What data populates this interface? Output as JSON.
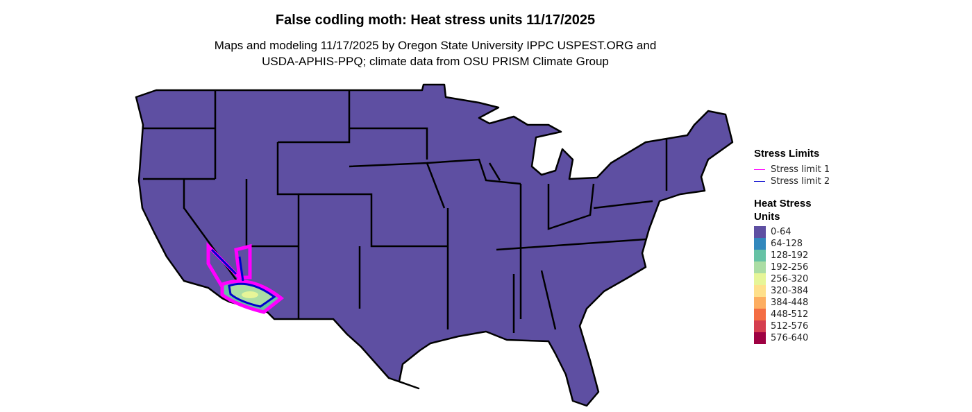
{
  "title": "False codling moth: Heat stress units 11/17/2025",
  "subtitle_lines": [
    "Maps and modeling 11/17/2025 by Oregon State University IPPC USPEST.ORG and",
    "USDA-APHIS-PPQ; climate data from OSU PRISM Climate Group"
  ],
  "legend": {
    "stress_title": "Stress Limits",
    "stress": [
      {
        "label": "Stress limit 1",
        "color": "#ff00ff"
      },
      {
        "label": "Stress limit 2",
        "color": "#0000cd"
      }
    ],
    "units_title_lines": [
      "Heat Stress",
      "Units"
    ],
    "units": [
      {
        "label": "0-64",
        "color": "#5e4fa2"
      },
      {
        "label": "64-128",
        "color": "#3288bd"
      },
      {
        "label": "128-192",
        "color": "#66c2a5"
      },
      {
        "label": "192-256",
        "color": "#abdda4"
      },
      {
        "label": "256-320",
        "color": "#e6f598"
      },
      {
        "label": "320-384",
        "color": "#fee08b"
      },
      {
        "label": "384-448",
        "color": "#fdae61"
      },
      {
        "label": "448-512",
        "color": "#f46d43"
      },
      {
        "label": "512-576",
        "color": "#d53e4f"
      },
      {
        "label": "576-640",
        "color": "#9e0142"
      }
    ]
  }
}
